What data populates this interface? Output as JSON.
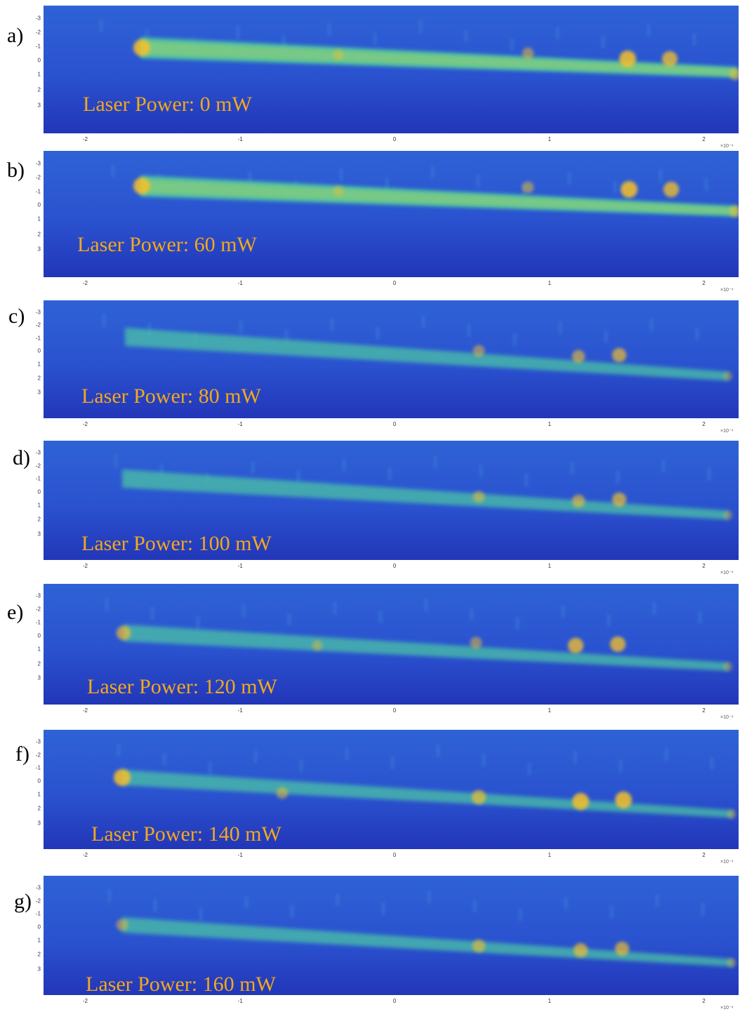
{
  "x_ticks": [
    "-2",
    "-1",
    "0",
    "1",
    "2"
  ],
  "y_ticks": [
    "-3",
    "-2",
    "-1",
    "0",
    "1",
    "2",
    "3"
  ],
  "x_exponent": "×10⁻⁴",
  "panels": [
    {
      "letter": "a)",
      "label": "Laser Power: 0 mW"
    },
    {
      "letter": "b)",
      "label": "Laser Power: 60 mW"
    },
    {
      "letter": "c)",
      "label": "Laser Power: 80 mW"
    },
    {
      "letter": "d)",
      "label": "Laser Power: 100 mW"
    },
    {
      "letter": "e)",
      "label": "Laser Power: 120 mW"
    },
    {
      "letter": "f)",
      "label": "Laser Power: 140 mW"
    },
    {
      "letter": "g)",
      "label": "Laser Power: 160 mW"
    }
  ],
  "colors": {
    "label": "#f3a81c",
    "background": "#2444c8",
    "beam": "#4cc3a6",
    "hotspot": "#f6c12a"
  }
}
